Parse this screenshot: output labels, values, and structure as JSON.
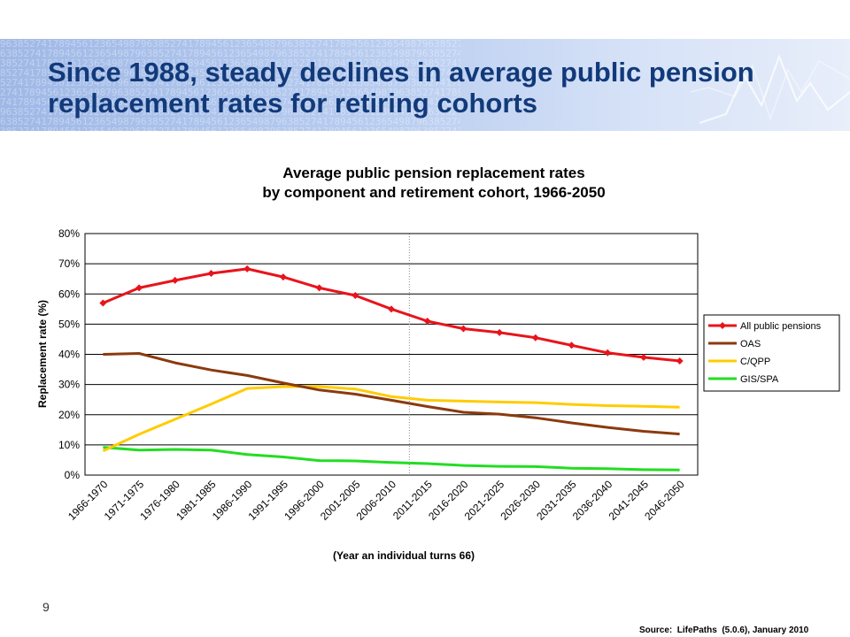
{
  "slide": {
    "title": "Since 1988, steady declines in  average public pension replacement rates for retiring cohorts",
    "page_number": "9",
    "source": "Source:  LifePaths  (5.0.6), January 2010"
  },
  "chart_data": {
    "type": "line",
    "title_lines": [
      "Average public pension replacement rates",
      "by component and retirement cohort, 1966-2050"
    ],
    "xlabel": "(Year an individual turns 66)",
    "ylabel": "Replacement rate (%)",
    "ylim": [
      0,
      80
    ],
    "yticks": [
      "0%",
      "10%",
      "20%",
      "30%",
      "40%",
      "50%",
      "60%",
      "70%",
      "80%"
    ],
    "grid": true,
    "legend_position": "right",
    "categories": [
      "1966-1970",
      "1971-1975",
      "1976-1980",
      "1981-1985",
      "1986-1990",
      "1991-1995",
      "1996-2000",
      "2001-2005",
      "2006-2010",
      "2011-2015",
      "2016-2020",
      "2021-2025",
      "2026-2030",
      "2031-2035",
      "2036-2040",
      "2041-2045",
      "2046-2050"
    ],
    "series": [
      {
        "name": "All public pensions",
        "color": "#e8141b",
        "marker": "diamond",
        "values": [
          57,
          62,
          64.5,
          66.8,
          68.3,
          65.6,
          62,
          59.5,
          55,
          51,
          48.5,
          47.2,
          45.5,
          43,
          40.5,
          39,
          37.8
        ]
      },
      {
        "name": "OAS",
        "color": "#8b3a0f",
        "marker": "none",
        "values": [
          40,
          40.3,
          37.2,
          34.8,
          33,
          30.5,
          28.2,
          26.8,
          24.8,
          22.7,
          20.8,
          20.2,
          19,
          17.3,
          15.8,
          14.5,
          13.6
        ]
      },
      {
        "name": "C/QPP",
        "color": "#ffcc00",
        "marker": "none",
        "values": [
          8,
          13.5,
          18.5,
          23.5,
          28.7,
          29.3,
          29.3,
          28.5,
          26,
          24.8,
          24.5,
          24.2,
          24,
          23.4,
          23,
          22.8,
          22.5
        ]
      },
      {
        "name": "GIS/SPA",
        "color": "#22dd22",
        "marker": "none",
        "values": [
          9.2,
          8.3,
          8.5,
          8.3,
          6.8,
          6,
          4.8,
          4.7,
          4.2,
          3.8,
          3.2,
          2.9,
          2.8,
          2.3,
          2.1,
          1.8,
          1.7
        ]
      }
    ]
  }
}
